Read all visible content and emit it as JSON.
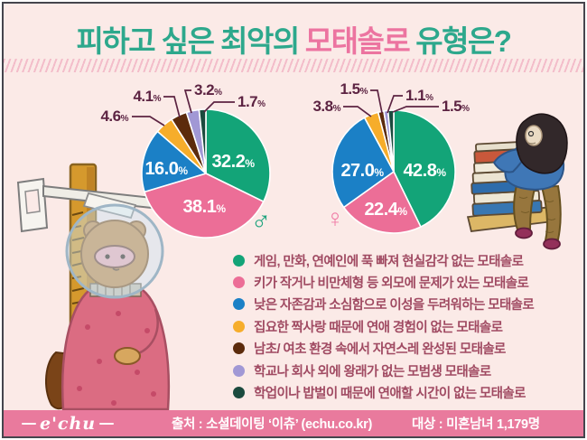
{
  "title": {
    "part1": "피하고 싶은 최악의",
    "highlight": "모태솔로",
    "part2": "유형은?"
  },
  "chart_data": {
    "type": "pie",
    "unit": "%",
    "legend_position": "bottom-right",
    "categories": [
      "게임, 만화, 연예인에 푹 빠져 현실감각 없는 모태솔로",
      "키가 작거나 비만체형 등 외모에 문제가 있는 모태솔로",
      "낮은 자존감과 소심함으로 이성을 두려워하는 모태솔로",
      "집요한 짝사랑 때문에 연애 경험이 없는 모태솔로",
      "남초/ 여초 환경 속에서 자연스레 완성된 모태솔로",
      "학교나 회사 외에 왕래가 없는 모범생 모태솔로",
      "학업이나 밥벌이 때문에 연애할 시간이 없는 모태솔로"
    ],
    "colors": [
      "#13a478",
      "#ec6e97",
      "#1b80c6",
      "#f6ad2b",
      "#5c2b0c",
      "#a198d5",
      "#1b4a3e"
    ],
    "series": [
      {
        "name": "male",
        "gender_symbol": "♂",
        "symbol_color": "#1ea37d",
        "values": [
          32.2,
          38.1,
          16.0,
          4.6,
          4.1,
          3.2,
          1.7
        ],
        "display": [
          "32.2",
          "38.1",
          "16.0",
          "4.6",
          "4.1",
          "3.2",
          "1.7"
        ]
      },
      {
        "name": "female",
        "gender_symbol": "♀",
        "symbol_color": "#f07ca6",
        "values": [
          42.8,
          22.4,
          27.0,
          3.8,
          1.5,
          1.1,
          1.5
        ],
        "display": [
          "42.8",
          "22.4",
          "27.0",
          "3.8",
          "1.5",
          "1.1",
          "1.5"
        ]
      }
    ]
  },
  "footer": {
    "logo": "e'chu",
    "source": "출처 : 소셜데이팅 ‘이츄’ (echu.co.kr)",
    "target": "대상 : 미혼남녀 1,179명"
  }
}
